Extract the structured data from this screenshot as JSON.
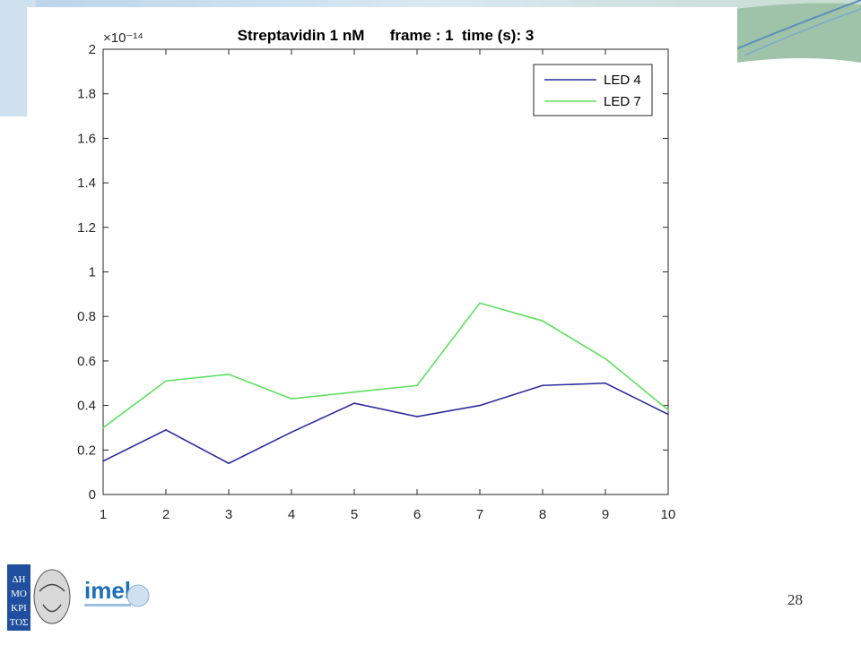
{
  "slide": {
    "page_number": "28"
  },
  "logos": {
    "imel_text": "imel"
  },
  "chart_data": {
    "type": "line",
    "title": "Streptavidin 1 nM      frame : 1  time (s): 3",
    "xlabel": "",
    "ylabel": "",
    "y_exponent": "×10⁻¹⁴",
    "x": [
      1,
      2,
      3,
      4,
      5,
      6,
      7,
      8,
      9,
      10
    ],
    "xlim": [
      1,
      10
    ],
    "ylim": [
      0,
      2
    ],
    "yticks": [
      "0",
      "0.2",
      "0.4",
      "0.6",
      "0.8",
      "1",
      "1.2",
      "1.4",
      "1.6",
      "1.8",
      "2"
    ],
    "xticks": [
      "1",
      "2",
      "3",
      "4",
      "5",
      "6",
      "7",
      "8",
      "9",
      "10"
    ],
    "grid": false,
    "legend_position": "top-right",
    "series": [
      {
        "name": "LED 4",
        "color": "#2b2b9e",
        "values": [
          0.15,
          0.29,
          0.14,
          0.28,
          0.41,
          0.35,
          0.4,
          0.49,
          0.5,
          0.36
        ]
      },
      {
        "name": "LED 7",
        "color": "#5ee05e",
        "values": [
          0.3,
          0.51,
          0.54,
          0.43,
          0.46,
          0.49,
          0.86,
          0.78,
          0.61,
          0.38
        ]
      }
    ]
  }
}
